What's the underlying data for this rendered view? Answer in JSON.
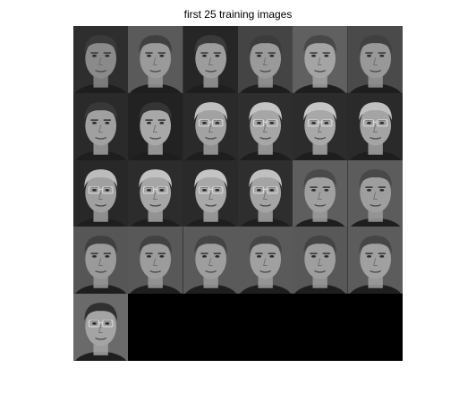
{
  "figure": {
    "title": "first 25 training images"
  },
  "montage": {
    "columns": 6,
    "rows": 5,
    "image_count": 25,
    "background_color": "#000000",
    "faces": [
      {
        "subject": "A",
        "glasses": false,
        "skin": "#8a8a8a",
        "hair": "#3a3a3a",
        "bg": "#2e2e2e"
      },
      {
        "subject": "A",
        "glasses": false,
        "skin": "#9a9a9a",
        "hair": "#404040",
        "bg": "#5a5a5a"
      },
      {
        "subject": "A",
        "glasses": false,
        "skin": "#9c9c9c",
        "hair": "#3a3a3a",
        "bg": "#262626"
      },
      {
        "subject": "A",
        "glasses": false,
        "skin": "#9a9a9a",
        "hair": "#3c3c3c",
        "bg": "#444444"
      },
      {
        "subject": "A",
        "glasses": false,
        "skin": "#a4a4a4",
        "hair": "#484848",
        "bg": "#606060"
      },
      {
        "subject": "A",
        "glasses": false,
        "skin": "#989898",
        "hair": "#404040",
        "bg": "#4a4a4a"
      },
      {
        "subject": "A",
        "glasses": false,
        "skin": "#a0a0a0",
        "hair": "#383838",
        "bg": "#2a2a2a"
      },
      {
        "subject": "A",
        "glasses": false,
        "skin": "#a8a8a8",
        "hair": "#343434",
        "bg": "#222222"
      },
      {
        "subject": "B",
        "glasses": true,
        "skin": "#a2a2a2",
        "hair": "#bfbfbf",
        "bg": "#2a2a2a"
      },
      {
        "subject": "B",
        "glasses": true,
        "skin": "#a6a6a6",
        "hair": "#c4c4c4",
        "bg": "#2e2e2e"
      },
      {
        "subject": "B",
        "glasses": true,
        "skin": "#a8a8a8",
        "hair": "#c6c6c6",
        "bg": "#2c2c2c"
      },
      {
        "subject": "B",
        "glasses": true,
        "skin": "#a4a4a4",
        "hair": "#c0c0c0",
        "bg": "#2a2a2a"
      },
      {
        "subject": "B",
        "glasses": true,
        "skin": "#a0a0a0",
        "hair": "#bcbcbc",
        "bg": "#282828"
      },
      {
        "subject": "B",
        "glasses": true,
        "skin": "#a6a6a6",
        "hair": "#c2c2c2",
        "bg": "#2c2c2c"
      },
      {
        "subject": "B",
        "glasses": true,
        "skin": "#a8a8a8",
        "hair": "#c4c4c4",
        "bg": "#2a2a2a"
      },
      {
        "subject": "B",
        "glasses": true,
        "skin": "#a4a4a4",
        "hair": "#c0c0c0",
        "bg": "#2e2e2e"
      },
      {
        "subject": "C",
        "glasses": false,
        "skin": "#a0a0a0",
        "hair": "#4a4a4a",
        "bg": "#5e5e5e"
      },
      {
        "subject": "C",
        "glasses": false,
        "skin": "#9e9e9e",
        "hair": "#484848",
        "bg": "#5c5c5c"
      },
      {
        "subject": "C",
        "glasses": false,
        "skin": "#9a9a9a",
        "hair": "#404040",
        "bg": "#565656"
      },
      {
        "subject": "C",
        "glasses": false,
        "skin": "#9c9c9c",
        "hair": "#424242",
        "bg": "#585858"
      },
      {
        "subject": "C",
        "glasses": false,
        "skin": "#9e9e9e",
        "hair": "#444444",
        "bg": "#5a5a5a"
      },
      {
        "subject": "C",
        "glasses": false,
        "skin": "#a0a0a0",
        "hair": "#464646",
        "bg": "#5a5a5a"
      },
      {
        "subject": "C",
        "glasses": false,
        "skin": "#9e9e9e",
        "hair": "#444444",
        "bg": "#585858"
      },
      {
        "subject": "C",
        "glasses": false,
        "skin": "#a0a0a0",
        "hair": "#464646",
        "bg": "#5c5c5c"
      },
      {
        "subject": "D",
        "glasses": true,
        "skin": "#a4a4a4",
        "hair": "#303030",
        "bg": "#6a6a6a"
      }
    ]
  }
}
